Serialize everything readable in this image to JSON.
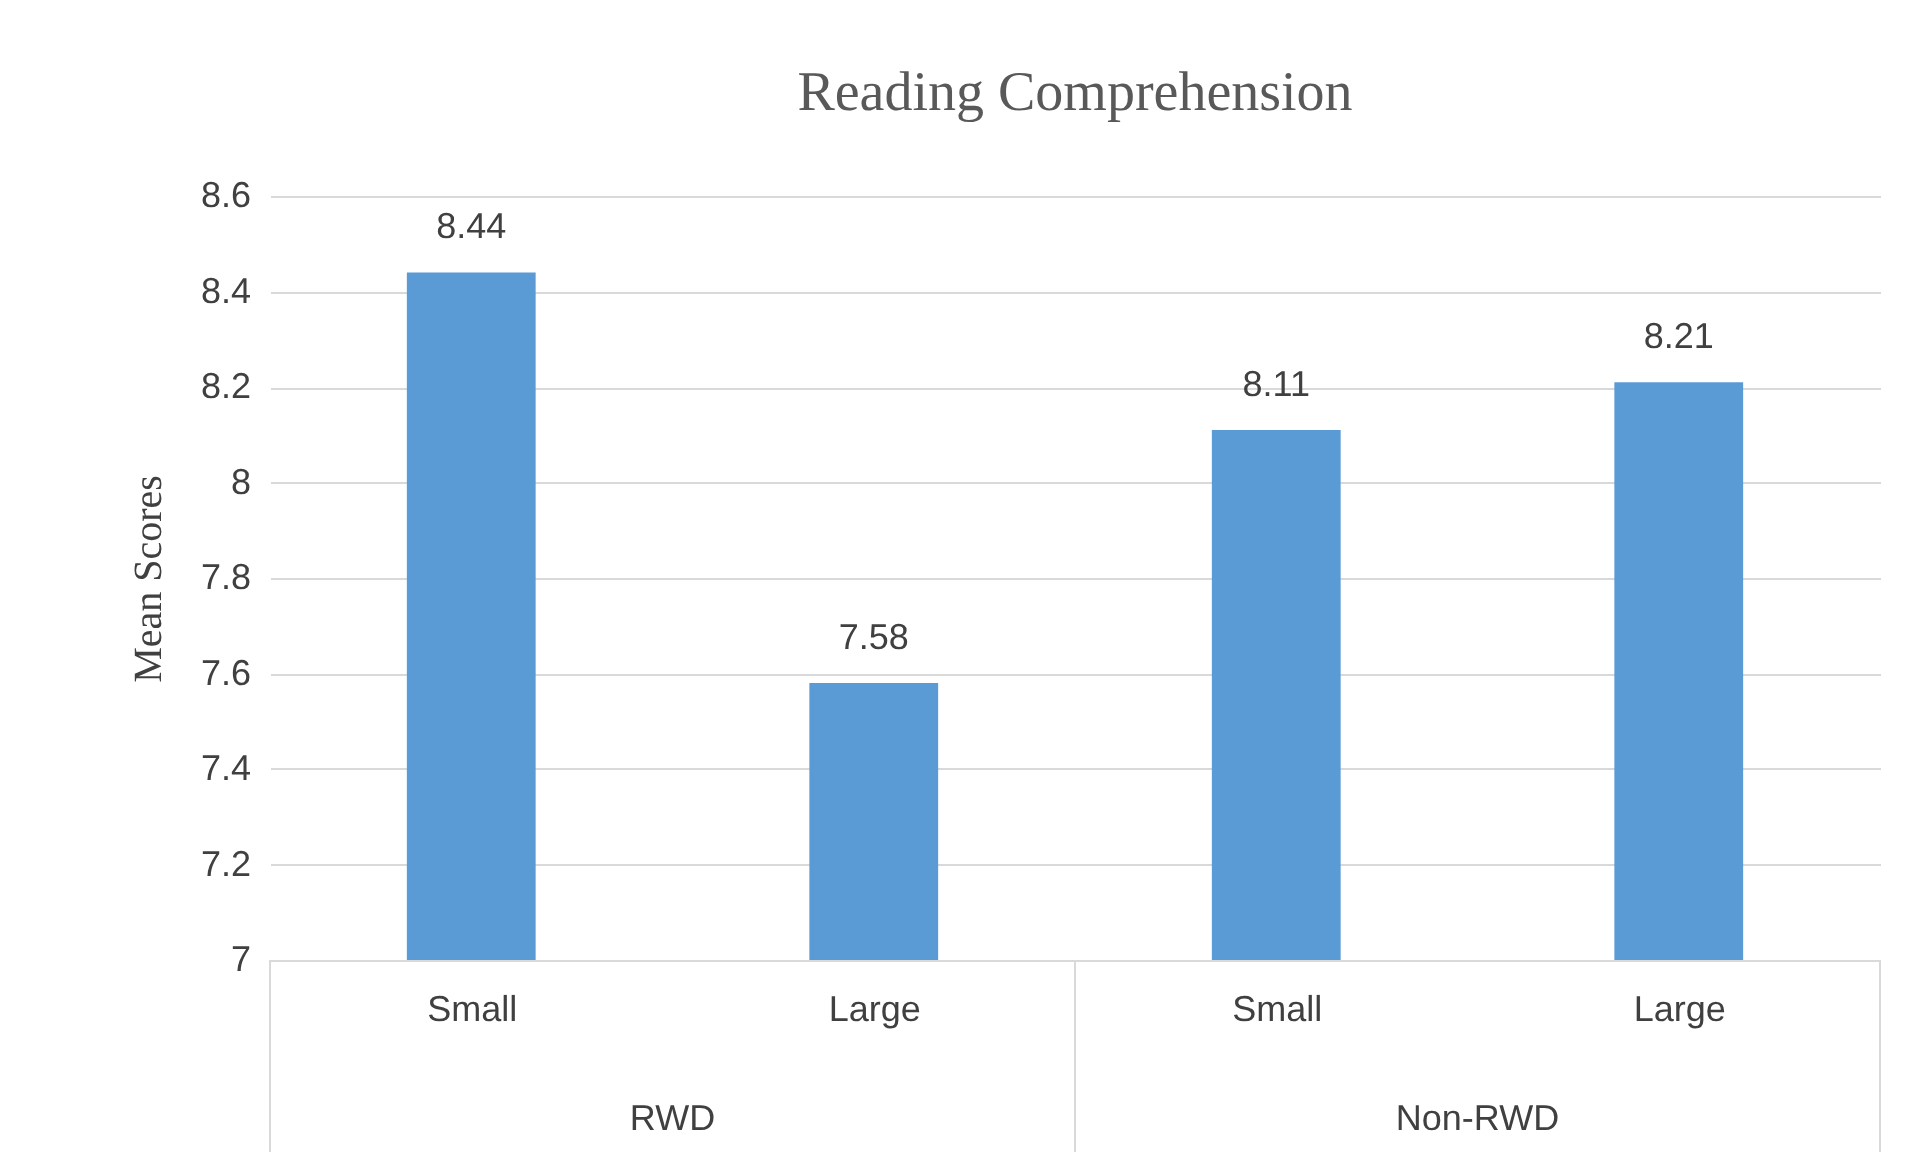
{
  "chart_data": {
    "type": "bar",
    "title": "Reading Comprehension",
    "ylabel": "Mean Scores",
    "categories": [
      "Small",
      "Large",
      "Small",
      "Large"
    ],
    "values": [
      8.44,
      7.58,
      8.11,
      8.21
    ],
    "color": "#5b9bd5",
    "ylim": [
      7,
      8.6
    ],
    "yticks": [
      7,
      7.2,
      7.4,
      7.6,
      7.8,
      8,
      8.2,
      8.4,
      8.6
    ],
    "grid": "y",
    "data_labels": true,
    "annotations": [
      "RWD",
      "Non-RWD"
    ]
  }
}
